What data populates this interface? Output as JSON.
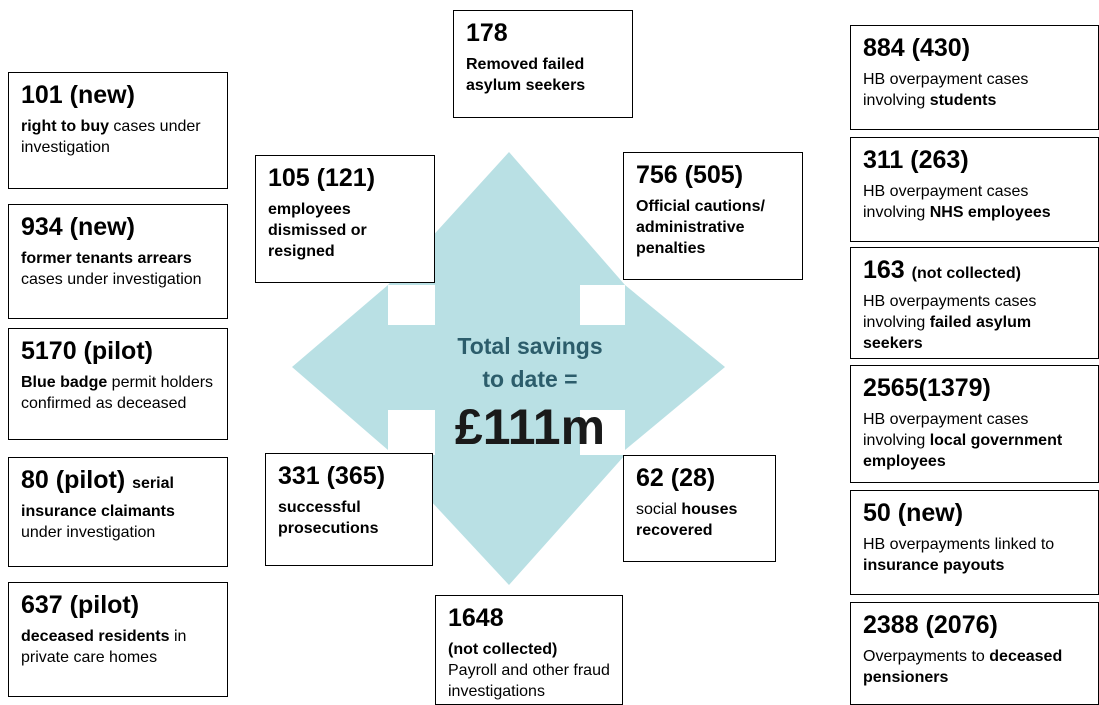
{
  "boxes": [
    {
      "headline": "101 (new)",
      "runs": [
        {
          "text": "right to buy",
          "bold": true
        },
        {
          "text": " cases under investigation"
        }
      ]
    },
    {
      "headline": "934 (new)",
      "runs": [
        {
          "text": "former tenants arrears",
          "bold": true
        },
        {
          "text": " cases under investigation"
        }
      ]
    },
    {
      "headline": "5170 (pilot)",
      "runs": [
        {
          "text": "Blue badge",
          "bold": true
        },
        {
          "text": " permit holders confirmed as deceased"
        }
      ]
    },
    {
      "headline": "80 (pilot)",
      "headline_note": "serial",
      "runs": [
        {
          "text": "insurance claimants",
          "bold": true
        },
        {
          "text": " under investigation"
        }
      ]
    },
    {
      "headline": "637 (pilot)",
      "runs": [
        {
          "text": "deceased residents",
          "bold": true
        },
        {
          "text": " in private care homes"
        }
      ]
    },
    {
      "headline": "178",
      "runs": [
        {
          "text": "Removed failed asylum seekers",
          "bold": true
        }
      ]
    },
    {
      "headline": "105 (121)",
      "runs": [
        {
          "text": "employees dismissed or resigned",
          "bold": true
        }
      ]
    },
    {
      "headline": "756 (505)",
      "runs": [
        {
          "text": "Official cautions/ administrative penalties",
          "bold": true
        }
      ]
    },
    {
      "headline": "331 (365)",
      "runs": [
        {
          "text": "successful prosecutions",
          "bold": true
        }
      ]
    },
    {
      "headline": "62 (28)",
      "runs": [
        {
          "text": "social "
        },
        {
          "text": "houses recovered",
          "bold": true
        }
      ]
    },
    {
      "headline": "1648",
      "runs": [
        {
          "text": "(not collected)",
          "bold": true
        },
        {
          "text": "Payroll and other fraud investigations"
        }
      ]
    },
    {
      "headline": "884 (430)",
      "runs": [
        {
          "text": "HB overpayment cases involving "
        },
        {
          "text": "students",
          "bold": true
        }
      ]
    },
    {
      "headline": "311 (263)",
      "runs": [
        {
          "text": "HB overpayment cases involving "
        },
        {
          "text": "NHS employees",
          "bold": true
        }
      ]
    },
    {
      "headline": "163",
      "headline_note": "(not collected)",
      "runs": [
        {
          "text": "HB overpayments cases involving "
        },
        {
          "text": "failed asylum seekers",
          "bold": true
        }
      ]
    },
    {
      "headline": "2565(1379)",
      "runs": [
        {
          "text": "HB overpayment cases involving "
        },
        {
          "text": "local government employees",
          "bold": true
        }
      ]
    },
    {
      "headline": "50 (new)",
      "runs": [
        {
          "text": "HB overpayments linked to "
        },
        {
          "text": "insurance payouts",
          "bold": true
        }
      ]
    },
    {
      "headline": "2388 (2076)",
      "runs": [
        {
          "text": "Overpayments to "
        },
        {
          "text": "deceased pensioners",
          "bold": true
        }
      ]
    }
  ],
  "center": {
    "line1": "Total savings",
    "line2": "to date =",
    "amount": "£111m"
  }
}
